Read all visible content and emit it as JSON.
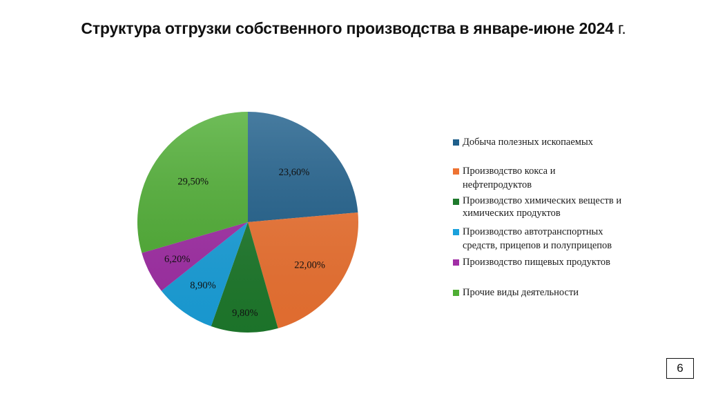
{
  "title": {
    "main": "Структура отгрузки собственного производства в январе-июне 2024",
    "suffix": " г."
  },
  "chart_data": {
    "type": "pie",
    "title": "Структура отгрузки собственного производства в январе-июне 2024 г.",
    "categories": [
      "Добыча полезных ископаемых",
      "Производство кокса и нефтепродуктов",
      "Производство химических веществ и химических продуктов",
      "Производство автотранспортных средств, прицепов и полуприцепов",
      "Производство пищевых продуктов",
      "Прочие виды деятельности"
    ],
    "values": [
      23.6,
      22.0,
      9.8,
      8.9,
      6.2,
      29.5
    ],
    "labels": [
      "23,60%",
      "22,00%",
      "9,80%",
      "8,90%",
      "6,20%",
      "29,50%"
    ],
    "colors": [
      "#1f5f8b",
      "#ee7332",
      "#1e7a2c",
      "#1aa1dc",
      "#a12ea6",
      "#4fae34"
    ],
    "start_angle": "12 o'clock",
    "direction": "clockwise",
    "legend_position": "right"
  },
  "legend": {
    "items": [
      {
        "line1": "Добыча полезных ископаемых",
        "line2": "",
        "color": "#1f5f8b"
      },
      {
        "line1": "Производство кокса и",
        "line2": "нефтепродуктов",
        "color": "#ee7332"
      },
      {
        "line1": "Производство химических веществ и",
        "line2": "химических продуктов",
        "color": "#1e7a2c"
      },
      {
        "line1": "Производство автотранспортных",
        "line2": "средств, прицепов и полуприцепов",
        "color": "#1aa1dc"
      },
      {
        "line1": "Производство пищевых продуктов",
        "line2": "",
        "color": "#a12ea6"
      },
      {
        "line1": "Прочие виды деятельности",
        "line2": "",
        "color": "#4fae34"
      }
    ]
  },
  "page": {
    "number": "6"
  }
}
